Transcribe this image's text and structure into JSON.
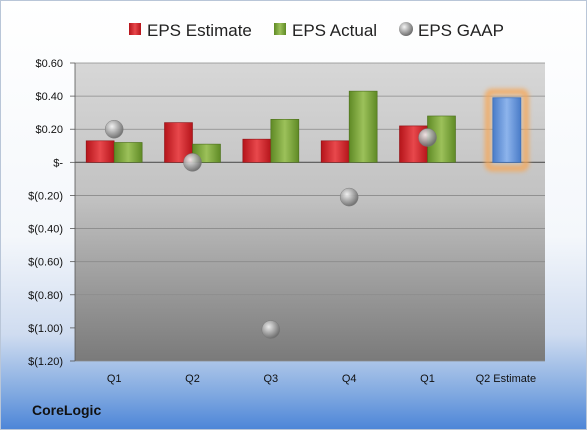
{
  "brand": "CoreLogic",
  "colors": {
    "estimate": "#d9262b",
    "actual": "#7fa83b",
    "gaap": "#a8a8a8",
    "highlight_bar": "#6b9be0",
    "highlight_glow": "#f5a85a"
  },
  "chart_data": {
    "type": "bar",
    "title": "",
    "xlabel": "",
    "ylabel": "",
    "ylim": [
      -1.2,
      0.6
    ],
    "categories": [
      "Q1",
      "Q2",
      "Q3",
      "Q4",
      "Q1",
      "Q2 Estimate"
    ],
    "y_ticks": [
      0.6,
      0.4,
      0.2,
      0,
      -0.2,
      -0.4,
      -0.6,
      -0.8,
      -1.0,
      -1.2
    ],
    "y_tick_labels": [
      "$0.60",
      "$0.40",
      "$0.20",
      "$-",
      "$(0.20)",
      "$(0.40)",
      "$(0.60)",
      "$(0.80)",
      "$(1.00)",
      "$(1.20)"
    ],
    "legend": [
      "EPS Estimate",
      "EPS Actual",
      "EPS GAAP"
    ],
    "legend_position": "top",
    "grid": true,
    "series": [
      {
        "name": "EPS Estimate",
        "type": "bar",
        "values": [
          0.13,
          0.24,
          0.14,
          0.13,
          0.22,
          0.39
        ]
      },
      {
        "name": "EPS Actual",
        "type": "bar",
        "values": [
          0.12,
          0.11,
          0.26,
          0.43,
          0.28,
          null
        ]
      },
      {
        "name": "EPS GAAP",
        "type": "scatter",
        "values": [
          0.2,
          0.0,
          -1.01,
          -0.21,
          0.15,
          null
        ]
      }
    ]
  }
}
